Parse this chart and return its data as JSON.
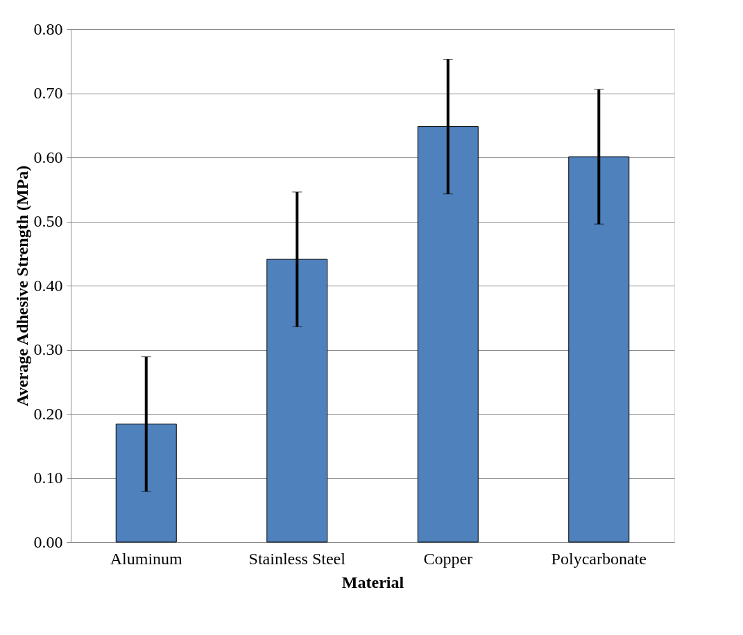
{
  "chart_data": {
    "type": "bar",
    "xlabel": "Material",
    "ylabel": "Average Adhesive Strength (MPa)",
    "categories": [
      "Aluminum",
      "Stainless Steel",
      "Copper",
      "Polycarbonate"
    ],
    "values": [
      0.184,
      0.441,
      0.648,
      0.601
    ],
    "errors": [
      0.105,
      0.105,
      0.105,
      0.105
    ],
    "color": "#4f81bd",
    "ylim": [
      0,
      0.8
    ],
    "yticks": [
      {
        "value": 0,
        "label": "0.00"
      },
      {
        "value": 0.1,
        "label": "0.10"
      },
      {
        "value": 0.2,
        "label": "0.20"
      },
      {
        "value": 0.3,
        "label": "0.30"
      },
      {
        "value": 0.4,
        "label": "0.40"
      },
      {
        "value": 0.5,
        "label": "0.50"
      },
      {
        "value": 0.6,
        "label": "0.60"
      },
      {
        "value": 0.7,
        "label": "0.70"
      },
      {
        "value": 0.8,
        "label": "0.80"
      }
    ],
    "grid": "y",
    "legend": false
  }
}
